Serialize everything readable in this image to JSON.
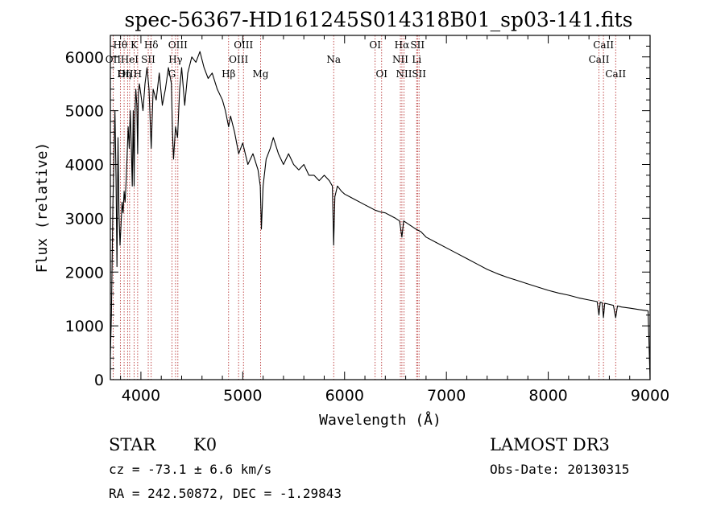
{
  "chart_data": {
    "type": "line",
    "title": "spec-56367-HD161245S014318B01_sp03-141.fits",
    "xlabel": "Wavelength (Å)",
    "ylabel": "Flux (relative)",
    "xlim": [
      3700,
      9000
    ],
    "ylim": [
      0,
      6400
    ],
    "xticks": [
      4000,
      5000,
      6000,
      7000,
      8000,
      9000
    ],
    "yticks": [
      0,
      1000,
      2000,
      3000,
      4000,
      5000,
      6000
    ],
    "series": [
      {
        "name": "spectrum",
        "x": [
          3700,
          3710,
          3725,
          3735,
          3745,
          3755,
          3765,
          3775,
          3785,
          3795,
          3805,
          3815,
          3825,
          3835,
          3845,
          3855,
          3865,
          3875,
          3885,
          3895,
          3905,
          3915,
          3925,
          3933,
          3940,
          3950,
          3960,
          3968,
          3975,
          3985,
          4000,
          4020,
          4040,
          4060,
          4080,
          4101,
          4120,
          4150,
          4180,
          4210,
          4240,
          4270,
          4300,
          4310,
          4320,
          4340,
          4360,
          4380,
          4400,
          4430,
          4460,
          4500,
          4540,
          4580,
          4620,
          4660,
          4700,
          4750,
          4800,
          4830,
          4861,
          4880,
          4920,
          4960,
          5000,
          5050,
          5100,
          5150,
          5172,
          5183,
          5200,
          5230,
          5270,
          5300,
          5350,
          5400,
          5450,
          5500,
          5550,
          5600,
          5650,
          5700,
          5750,
          5800,
          5850,
          5880,
          5893,
          5905,
          5930,
          5970,
          6000,
          6050,
          6100,
          6150,
          6200,
          6250,
          6300,
          6350,
          6400,
          6450,
          6500,
          6540,
          6563,
          6580,
          6620,
          6660,
          6700,
          6750,
          6800,
          6900,
          7000,
          7100,
          7200,
          7300,
          7400,
          7500,
          7600,
          7700,
          7800,
          7900,
          8000,
          8100,
          8200,
          8300,
          8400,
          8480,
          8498,
          8510,
          8530,
          8542,
          8555,
          8600,
          8640,
          8662,
          8680,
          8720,
          8800,
          8900,
          8980,
          9000
        ],
        "values": [
          450,
          1200,
          3300,
          4100,
          5000,
          3800,
          2100,
          4500,
          3100,
          2500,
          2900,
          3300,
          3100,
          3500,
          3300,
          3700,
          4200,
          4700,
          4300,
          5000,
          4400,
          3600,
          5000,
          3600,
          4800,
          5400,
          5100,
          4200,
          5300,
          5500,
          5300,
          5000,
          5500,
          5800,
          5400,
          4300,
          5400,
          5200,
          5700,
          5100,
          5400,
          5800,
          5500,
          4600,
          4100,
          4700,
          4500,
          5400,
          5800,
          5100,
          5700,
          6000,
          5900,
          6100,
          5800,
          5600,
          5700,
          5400,
          5200,
          5000,
          4700,
          4900,
          4600,
          4200,
          4400,
          4000,
          4200,
          3900,
          3600,
          2800,
          3600,
          4100,
          4300,
          4500,
          4200,
          4000,
          4200,
          4000,
          3900,
          4000,
          3800,
          3800,
          3700,
          3800,
          3700,
          3600,
          2500,
          3400,
          3600,
          3500,
          3450,
          3400,
          3350,
          3300,
          3250,
          3200,
          3150,
          3120,
          3100,
          3050,
          3000,
          2950,
          2650,
          2950,
          2900,
          2850,
          2800,
          2750,
          2650,
          2550,
          2450,
          2350,
          2250,
          2150,
          2050,
          1970,
          1900,
          1840,
          1780,
          1720,
          1660,
          1610,
          1570,
          1520,
          1480,
          1450,
          1200,
          1440,
          1430,
          1150,
          1420,
          1400,
          1380,
          1150,
          1370,
          1350,
          1330,
          1300,
          1280,
          0
        ]
      }
    ],
    "spectral_lines": [
      {
        "name": "Hθ",
        "wavelength": 3798,
        "row": 1
      },
      {
        "name": "OII",
        "wavelength": 3727,
        "row": 2
      },
      {
        "name": "OIII",
        "wavelength": 3869,
        "row": 3
      },
      {
        "name": "Hη",
        "wavelength": 3835,
        "row": 3
      },
      {
        "name": "K",
        "wavelength": 3933,
        "row": 1
      },
      {
        "name": "HeI",
        "wavelength": 3889,
        "row": 2
      },
      {
        "name": "H",
        "wavelength": 3968,
        "row": 3
      },
      {
        "name": "Hδ",
        "wavelength": 4101,
        "row": 1
      },
      {
        "name": "SII",
        "wavelength": 4072,
        "row": 2
      },
      {
        "name": "OIII",
        "wavelength": 4363,
        "row": 1
      },
      {
        "name": "Hγ",
        "wavelength": 4340,
        "row": 2
      },
      {
        "name": "G",
        "wavelength": 4305,
        "row": 3
      },
      {
        "name": "OIII",
        "wavelength": 5007,
        "row": 1
      },
      {
        "name": "OIII",
        "wavelength": 4959,
        "row": 2
      },
      {
        "name": "Hβ",
        "wavelength": 4861,
        "row": 3
      },
      {
        "name": "Mg",
        "wavelength": 5175,
        "row": 3
      },
      {
        "name": "Na",
        "wavelength": 5893,
        "row": 2
      },
      {
        "name": "OI",
        "wavelength": 6300,
        "row": 1
      },
      {
        "name": "OI",
        "wavelength": 6364,
        "row": 3
      },
      {
        "name": "Hα",
        "wavelength": 6563,
        "row": 1
      },
      {
        "name": "SII",
        "wavelength": 6716,
        "row": 1
      },
      {
        "name": "NII",
        "wavelength": 6548,
        "row": 2
      },
      {
        "name": "Li",
        "wavelength": 6708,
        "row": 2
      },
      {
        "name": "NII",
        "wavelength": 6583,
        "row": 3
      },
      {
        "name": "SII",
        "wavelength": 6731,
        "row": 3
      },
      {
        "name": "CaII",
        "wavelength": 8542,
        "row": 1
      },
      {
        "name": "CaII",
        "wavelength": 8498,
        "row": 2
      },
      {
        "name": "CaII",
        "wavelength": 8662,
        "row": 3
      }
    ]
  },
  "info": {
    "object_class": "STAR",
    "subclass": "K0",
    "survey": "LAMOST DR3",
    "redshift": "cz = -73.1 ± 6.6 km/s",
    "obs_date": "Obs-Date: 20130315",
    "coordinates": "RA = 242.50872, DEC =  -1.29843"
  }
}
